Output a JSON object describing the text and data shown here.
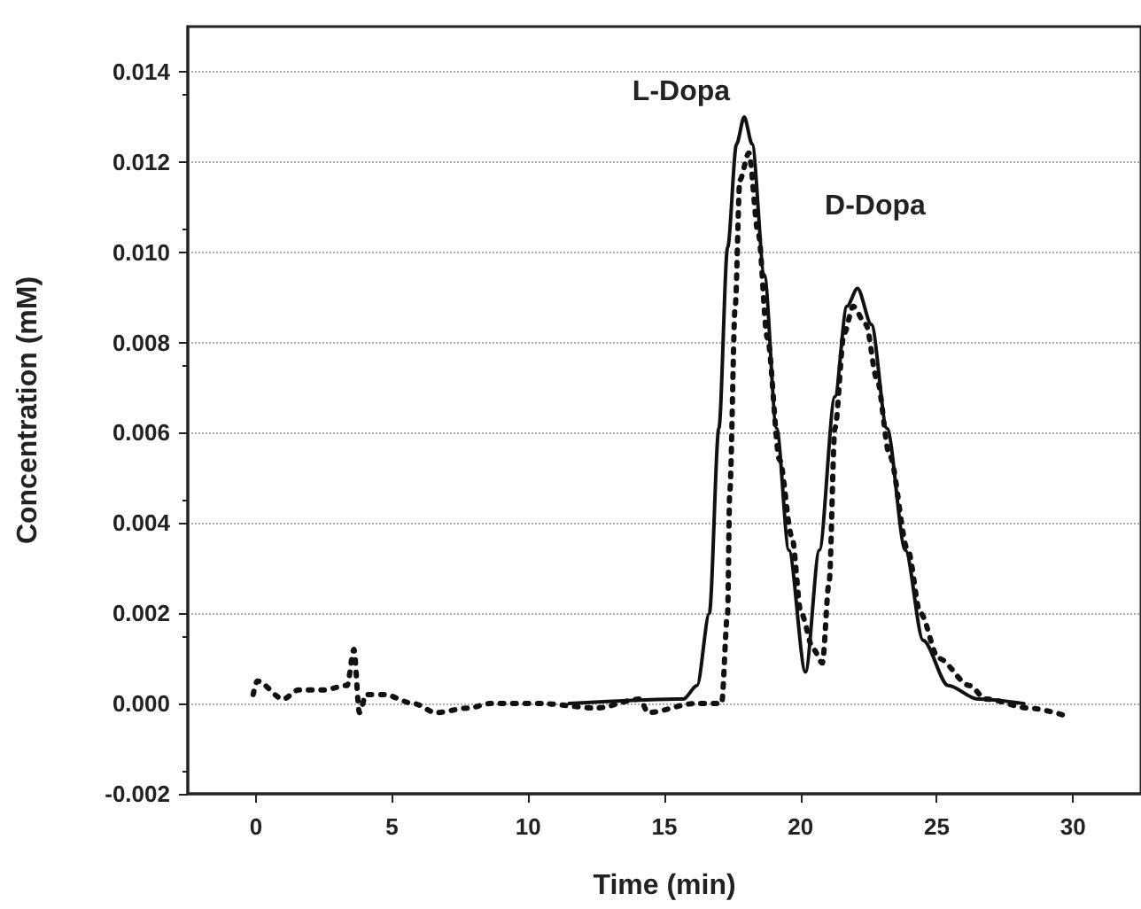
{
  "chart_data": {
    "type": "line",
    "xlabel": "Time (min)",
    "ylabel": "Concentration (mM)",
    "xlim": [
      -2.5,
      32.5
    ],
    "ylim": [
      -0.002,
      0.015
    ],
    "xticks": [
      0,
      5,
      10,
      15,
      20,
      25,
      30
    ],
    "yticks": [
      {
        "value": -0.002,
        "label": "-0.002"
      },
      {
        "value": 0,
        "label": "0.000"
      },
      {
        "value": 0.002,
        "label": "0.002"
      },
      {
        "value": 0.004,
        "label": "0.004"
      },
      {
        "value": 0.006,
        "label": "0.006"
      },
      {
        "value": 0.008,
        "label": "0.008"
      },
      {
        "value": 0.01,
        "label": "0.010"
      },
      {
        "value": 0.012,
        "label": "0.012"
      },
      {
        "value": 0.014,
        "label": "0.014"
      }
    ],
    "grid": "y",
    "marker": "none",
    "annotations": [
      {
        "text": "L-Dopa",
        "x": 17.93,
        "y": 0.013
      },
      {
        "text": "D-Dopa",
        "x": 22.09,
        "y": 0.0092
      }
    ],
    "series": [
      {
        "color": "#111111",
        "line_style": "solid",
        "x": [
          11.5,
          15.7,
          16.2,
          16.65,
          17.0,
          17.32,
          17.65,
          17.93,
          18.22,
          18.67,
          19.12,
          19.57,
          20.18,
          20.69,
          21.26,
          21.7,
          22.09,
          22.6,
          23.17,
          23.85,
          24.5,
          25.42,
          26.5,
          28.2
        ],
        "values": [
          0,
          0.0001,
          0.0004,
          0.002,
          0.0061,
          0.0101,
          0.0124,
          0.013,
          0.0124,
          0.0095,
          0.0061,
          0.0034,
          0.0007,
          0.0034,
          0.0068,
          0.0088,
          0.0092,
          0.0084,
          0.0061,
          0.0034,
          0.0014,
          0.0004,
          0.0001,
          0
        ]
      },
      {
        "color": "#111111",
        "line_style": "dotted",
        "x": [
          -0.1,
          0.05,
          1.0,
          1.56,
          2.45,
          3.35,
          3.6,
          3.8,
          4.05,
          4.7,
          5.8,
          6.6,
          7.8,
          8.6,
          10.5,
          12.5,
          14.1,
          14.4,
          16.1,
          16.8,
          17.1,
          17.32,
          17.4,
          17.6,
          17.77,
          18.1,
          18.45,
          18.78,
          19.23,
          19.68,
          20.02,
          20.47,
          20.8,
          21.05,
          21.26,
          21.6,
          21.93,
          22.4,
          22.8,
          23.27,
          23.94,
          24.4,
          25.07,
          26.2,
          26.8,
          28.4,
          29.9
        ],
        "values": [
          0.0002,
          0.0005,
          0.0001,
          0.0003,
          0.0003,
          0.0004,
          0.0012,
          -0.0002,
          0.0002,
          0.0002,
          0,
          -0.0002,
          -0.0001,
          0,
          0,
          -0.0001,
          0.0001,
          -0.0002,
          0,
          0,
          0,
          0.002,
          0.0047,
          0.0088,
          0.0116,
          0.0122,
          0.0104,
          0.0081,
          0.0054,
          0.0037,
          0.002,
          0.0012,
          0.0009,
          0.0027,
          0.0061,
          0.0082,
          0.0088,
          0.0084,
          0.0072,
          0.0055,
          0.0034,
          0.002,
          0.001,
          0.0004,
          0.0001,
          -0.0001,
          -0.0003
        ]
      }
    ]
  }
}
